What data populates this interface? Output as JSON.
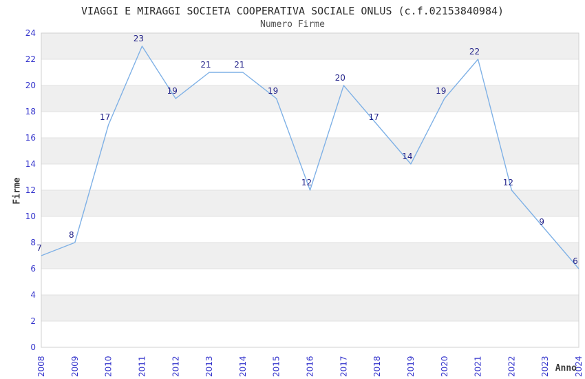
{
  "chart_data": {
    "type": "line",
    "title": "VIAGGI E MIRAGGI SOCIETA COOPERATIVA SOCIALE ONLUS (c.f.02153840984)",
    "subtitle": "Numero Firme",
    "xlabel": "Anno",
    "ylabel": "Firme",
    "categories": [
      "2008",
      "2009",
      "2010",
      "2011",
      "2012",
      "2013",
      "2014",
      "2015",
      "2016",
      "2017",
      "2018",
      "2019",
      "2020",
      "2021",
      "2022",
      "2023",
      "2024"
    ],
    "values": [
      7,
      8,
      17,
      23,
      19,
      21,
      21,
      19,
      12,
      20,
      17,
      14,
      19,
      22,
      12,
      9,
      6
    ],
    "ylim": [
      0,
      24
    ],
    "ytick_step": 2,
    "grid": true,
    "legend": "none",
    "point_labels_visible": true,
    "colors": {
      "line": "#7fb1e6",
      "tick_label": "#3333cc",
      "point_label": "#24248a",
      "band_fill": "#efefef",
      "grid_line": "#e0e0e0",
      "plot_border": "#d0d0d0",
      "title_text": "#2b2b2b",
      "subtitle_text": "#4f4f4f",
      "axis_title_text": "#3a3a3a"
    }
  }
}
